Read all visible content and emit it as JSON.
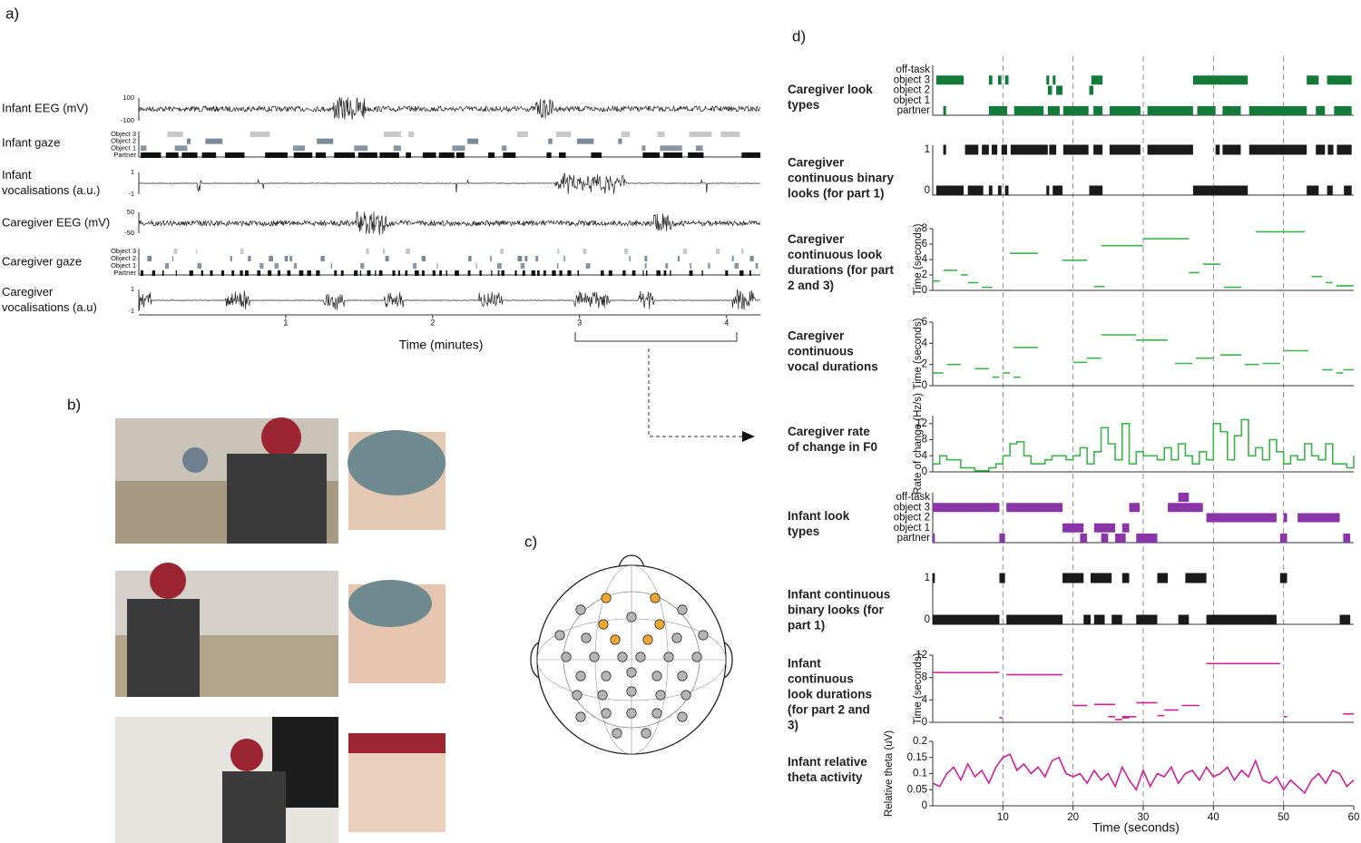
{
  "panels": {
    "a": "a)",
    "b": "b)",
    "c": "c)",
    "d": "d)"
  },
  "panel_a": {
    "rows": [
      {
        "label": [
          "Infant EEG (mV)"
        ],
        "kind": "eeg",
        "ticks": [
          "100",
          "-100"
        ]
      },
      {
        "label": [
          "Infant gaze"
        ],
        "kind": "gaze",
        "ticks": [
          "Object 3",
          "Object 2",
          "Object 1",
          "Partner"
        ]
      },
      {
        "label": [
          "Infant",
          "vocalisations (a.u.)"
        ],
        "kind": "voc",
        "ticks": [
          "1",
          "-1"
        ]
      },
      {
        "label": [
          "Caregiver EEG (mV)"
        ],
        "kind": "eeg",
        "ticks": [
          "50",
          "-50"
        ]
      },
      {
        "label": [
          "Caregiver gaze"
        ],
        "kind": "gaze",
        "ticks": [
          "Object 3",
          "Object 2",
          "Object 1",
          "Partner"
        ]
      },
      {
        "label": [
          "Caregiver",
          "vocalisations (a.u)"
        ],
        "kind": "voc",
        "ticks": [
          "1",
          "-1"
        ]
      }
    ],
    "xlim": [
      0,
      4.23
    ],
    "xticks": [
      1,
      2,
      3,
      4
    ],
    "xlabel": "Time (minutes)"
  },
  "panel_d": {
    "xlim": [
      0,
      60
    ],
    "xticks": [
      10,
      20,
      30,
      40,
      50,
      60
    ],
    "xlabel": "Time (seconds)",
    "rows": [
      {
        "label": [
          "Caregiver look",
          "types"
        ],
        "kind": "levels",
        "color": "#147a3a",
        "levels": [
          {
            "name": "off-task",
            "intervals": []
          },
          {
            "name": "object 3",
            "intervals": [
              [
                0.5,
                4.4
              ],
              [
                8,
                8.5
              ],
              [
                9.3,
                9.8
              ],
              [
                10.3,
                10.8
              ],
              [
                16.2,
                16.6
              ],
              [
                17.1,
                17.5
              ],
              [
                22.6,
                24.2
              ],
              [
                37.1,
                44.9
              ],
              [
                53.3,
                55
              ],
              [
                56.2,
                59.7
              ]
            ]
          },
          {
            "name": "object 2",
            "intervals": [
              [
                16.4,
                17
              ],
              [
                17.6,
                18.5
              ],
              [
                22.3,
                22.9
              ]
            ]
          },
          {
            "name": "object 1",
            "intervals": []
          },
          {
            "name": "partner",
            "intervals": [
              [
                1.5,
                1.9
              ],
              [
                8,
                10.6
              ],
              [
                11.6,
                15.8
              ],
              [
                16.4,
                18.1
              ],
              [
                18.6,
                22.2
              ],
              [
                22.9,
                24.2
              ],
              [
                25.2,
                29.6
              ],
              [
                30.6,
                37.1
              ],
              [
                37.7,
                40.3
              ],
              [
                41.3,
                43.9
              ],
              [
                45.1,
                53.3
              ],
              [
                54.6,
                55.9
              ],
              [
                57.2,
                59.7
              ]
            ]
          }
        ]
      },
      {
        "label": [
          "Caregiver",
          "continuous binary",
          "looks (for part 1)"
        ],
        "kind": "levels",
        "color": "#1a1a1a",
        "levels": [
          {
            "name": "1",
            "intervals": [
              [
                1.5,
                1.9
              ],
              [
                4.6,
                6.5
              ],
              [
                7,
                8
              ],
              [
                8.4,
                9.2
              ],
              [
                9.8,
                10.6
              ],
              [
                11.1,
                16.4
              ],
              [
                16.6,
                17.6
              ],
              [
                18.6,
                22.2
              ],
              [
                22.9,
                24.2
              ],
              [
                25.2,
                29.6
              ],
              [
                30.6,
                37.1
              ],
              [
                40.3,
                40.9
              ],
              [
                41.3,
                43.9
              ],
              [
                45.1,
                53.3
              ],
              [
                54.6,
                55.9
              ],
              [
                56.3,
                57.1
              ],
              [
                57.6,
                59.7
              ]
            ]
          },
          {
            "name": "0",
            "intervals": [
              [
                0.5,
                4.4
              ],
              [
                5,
                7.2
              ],
              [
                8,
                8.5
              ],
              [
                9.3,
                9.8
              ],
              [
                10.3,
                10.8
              ],
              [
                16.2,
                16.6
              ],
              [
                17.1,
                18.5
              ],
              [
                22.3,
                24.2
              ],
              [
                37.1,
                44.9
              ],
              [
                53.3,
                55
              ],
              [
                56.2,
                57
              ],
              [
                58.6,
                59.7
              ]
            ]
          }
        ]
      },
      {
        "label": [
          "Caregiver",
          "continuous look",
          "durations (for part",
          "2 and 3)"
        ],
        "kind": "segments",
        "color": "#3cb44b",
        "ylabel": "Time (seconds)",
        "ylim": [
          0,
          8
        ],
        "yticks": [
          0,
          2,
          4,
          6,
          8
        ],
        "segments": [
          [
            0,
            1,
            1.2
          ],
          [
            1.5,
            3.5,
            2.6
          ],
          [
            4,
            5,
            2
          ],
          [
            5,
            6.5,
            1
          ],
          [
            7,
            8.5,
            0.4
          ],
          [
            11,
            15,
            4.8
          ],
          [
            18.5,
            22,
            3.9
          ],
          [
            23,
            24.5,
            0.5
          ],
          [
            24,
            30,
            5.8
          ],
          [
            30,
            36.5,
            6.7
          ],
          [
            36.5,
            38,
            2.3
          ],
          [
            38.5,
            41,
            3.4
          ],
          [
            41.5,
            44,
            0.4
          ],
          [
            46,
            53,
            7.6
          ],
          [
            54,
            55.5,
            1.8
          ],
          [
            56,
            57,
            1
          ],
          [
            57.5,
            60,
            0.6
          ]
        ]
      },
      {
        "label": [
          "Caregiver",
          "continuous",
          "vocal durations"
        ],
        "kind": "segments",
        "color": "#3cb44b",
        "ylabel": "Time (seconds)",
        "ylim": [
          0,
          6
        ],
        "yticks": [
          0,
          2,
          4,
          6
        ],
        "segments": [
          [
            0,
            1.5,
            1.2
          ],
          [
            2,
            4,
            2
          ],
          [
            6,
            8,
            1.6
          ],
          [
            8.5,
            9.5,
            0.8
          ],
          [
            10,
            11,
            1.2
          ],
          [
            11.5,
            12.5,
            0.8
          ],
          [
            11.5,
            15,
            3.6
          ],
          [
            20,
            22,
            2.2
          ],
          [
            22,
            24,
            2.6
          ],
          [
            24,
            29,
            4.8
          ],
          [
            29,
            33.5,
            4.3
          ],
          [
            34.5,
            37,
            2.1
          ],
          [
            37.5,
            40,
            2.6
          ],
          [
            41,
            44,
            2.9
          ],
          [
            44.5,
            46.5,
            2
          ],
          [
            47,
            49.5,
            2.1
          ],
          [
            50,
            53.5,
            3.3
          ],
          [
            55.5,
            57,
            1.5
          ],
          [
            57.5,
            58.5,
            1.2
          ],
          [
            58.5,
            60,
            1.5
          ]
        ]
      },
      {
        "label": [
          "Caregiver rate",
          "of change in F0"
        ],
        "kind": "step",
        "color": "#3cb44b",
        "ylabel": "Rate of change (Hz/s)",
        "ylim": [
          0,
          14
        ],
        "yticks": [
          0,
          4,
          8,
          12
        ],
        "x": [
          0,
          1,
          2,
          3,
          4,
          5,
          6,
          7,
          8,
          9,
          10,
          11,
          12,
          13,
          14,
          15,
          16,
          17,
          18,
          19,
          20,
          21,
          22,
          23,
          24,
          25,
          26,
          27,
          28,
          29,
          30,
          31,
          32,
          33,
          34,
          35,
          36,
          37,
          38,
          39,
          40,
          41,
          42,
          43,
          44,
          45,
          46,
          47,
          48,
          49,
          50,
          51,
          52,
          53,
          54,
          55,
          56,
          57,
          58,
          59,
          60
        ],
        "values": [
          2,
          4,
          3,
          3,
          1,
          1,
          0.3,
          0.3,
          1,
          2,
          4,
          7,
          7.5,
          4,
          2,
          2,
          3,
          4,
          4,
          3,
          4,
          6,
          2,
          5,
          11,
          7,
          3,
          12,
          2,
          5,
          4,
          4,
          3,
          6,
          3,
          7,
          4,
          2,
          5,
          3,
          12,
          10,
          3,
          9,
          13,
          4,
          6,
          3,
          8,
          5,
          2,
          4,
          3,
          7,
          4,
          3,
          7,
          2,
          2,
          1,
          4
        ]
      },
      {
        "label": [
          "Infant look",
          "types"
        ],
        "kind": "levels",
        "color": "#8a35a8",
        "levels": [
          {
            "name": "off-task",
            "intervals": [
              [
                35,
                36.5
              ]
            ]
          },
          {
            "name": "object 3",
            "intervals": [
              [
                0,
                9.5
              ],
              [
                10.5,
                18.5
              ],
              [
                28,
                29.5
              ],
              [
                33.5,
                38.5
              ]
            ]
          },
          {
            "name": "object 2",
            "intervals": [
              [
                39,
                49
              ],
              [
                50,
                50.5
              ],
              [
                52,
                58
              ]
            ]
          },
          {
            "name": "object 1",
            "intervals": [
              [
                18.5,
                21.5
              ],
              [
                23,
                26
              ],
              [
                27,
                28
              ]
            ]
          },
          {
            "name": "partner",
            "intervals": [
              [
                0,
                0.3
              ],
              [
                9.5,
                10.3
              ],
              [
                21,
                22
              ],
              [
                24,
                25
              ],
              [
                26,
                27.5
              ],
              [
                29,
                32
              ],
              [
                49.5,
                50.5
              ],
              [
                58.5,
                59.5
              ]
            ]
          }
        ]
      },
      {
        "label": [
          "Infant continuous",
          "binary looks (for",
          "part 1)"
        ],
        "kind": "levels",
        "color": "#1a1a1a",
        "levels": [
          {
            "name": "1",
            "intervals": [
              [
                0,
                0.3
              ],
              [
                9.5,
                10.3
              ],
              [
                18.5,
                21.5
              ],
              [
                22.5,
                25.5
              ],
              [
                27,
                28
              ],
              [
                32,
                33.5
              ],
              [
                36,
                39
              ],
              [
                49.5,
                50.5
              ]
            ]
          },
          {
            "name": "0",
            "intervals": [
              [
                0,
                9.5
              ],
              [
                10.5,
                18.5
              ],
              [
                21.5,
                22.5
              ],
              [
                23,
                24.5
              ],
              [
                25.5,
                27
              ],
              [
                29,
                32
              ],
              [
                35,
                36.5
              ],
              [
                39,
                49
              ],
              [
                58,
                59.5
              ]
            ]
          }
        ]
      },
      {
        "label": [
          "Infant",
          "continuous",
          "look durations",
          "(for part 2 and",
          "3)"
        ],
        "kind": "segments",
        "color": "#d0209a",
        "ylabel": "Time (seconds)",
        "ylim": [
          0,
          12
        ],
        "yticks": [
          0,
          4,
          8,
          12
        ],
        "segments": [
          [
            0,
            9.5,
            8.9
          ],
          [
            9.5,
            10,
            0.8
          ],
          [
            10.5,
            18.5,
            8.5
          ],
          [
            20,
            22,
            3
          ],
          [
            23,
            26,
            3.2
          ],
          [
            25,
            26,
            1
          ],
          [
            26,
            27,
            0.5
          ],
          [
            27,
            28,
            0.8
          ],
          [
            27,
            29,
            1
          ],
          [
            29,
            32,
            3.5
          ],
          [
            32,
            33,
            1.2
          ],
          [
            33,
            35,
            2.2
          ],
          [
            35.5,
            38,
            3
          ],
          [
            39,
            49.5,
            10.5
          ],
          [
            50,
            50.5,
            1
          ],
          [
            58.5,
            60,
            1.5
          ]
        ]
      },
      {
        "label": [
          "Infant relative",
          "theta activity"
        ],
        "kind": "line",
        "color": "#d0209a",
        "ylabel": "Relative theta (uV)",
        "ylim": [
          0,
          0.2
        ],
        "yticks": [
          0,
          0.05,
          0.1,
          0.15,
          0.2
        ],
        "x": [
          0,
          1,
          2,
          3,
          4,
          5,
          6,
          7,
          8,
          9,
          10,
          11,
          12,
          13,
          14,
          15,
          16,
          17,
          18,
          19,
          20,
          21,
          22,
          23,
          24,
          25,
          26,
          27,
          28,
          29,
          30,
          31,
          32,
          33,
          34,
          35,
          36,
          37,
          38,
          39,
          40,
          41,
          42,
          43,
          44,
          45,
          46,
          47,
          48,
          49,
          50,
          51,
          52,
          53,
          54,
          55,
          56,
          57,
          58,
          59,
          60
        ],
        "values": [
          0.07,
          0.06,
          0.1,
          0.12,
          0.08,
          0.13,
          0.09,
          0.11,
          0.07,
          0.12,
          0.15,
          0.16,
          0.11,
          0.13,
          0.1,
          0.12,
          0.09,
          0.14,
          0.15,
          0.1,
          0.09,
          0.1,
          0.07,
          0.11,
          0.08,
          0.1,
          0.06,
          0.12,
          0.08,
          0.05,
          0.11,
          0.06,
          0.1,
          0.09,
          0.12,
          0.07,
          0.1,
          0.11,
          0.08,
          0.12,
          0.09,
          0.1,
          0.12,
          0.08,
          0.11,
          0.09,
          0.14,
          0.08,
          0.07,
          0.09,
          0.05,
          0.08,
          0.06,
          0.04,
          0.08,
          0.1,
          0.07,
          0.11,
          0.1,
          0.06,
          0.08
        ]
      }
    ]
  }
}
